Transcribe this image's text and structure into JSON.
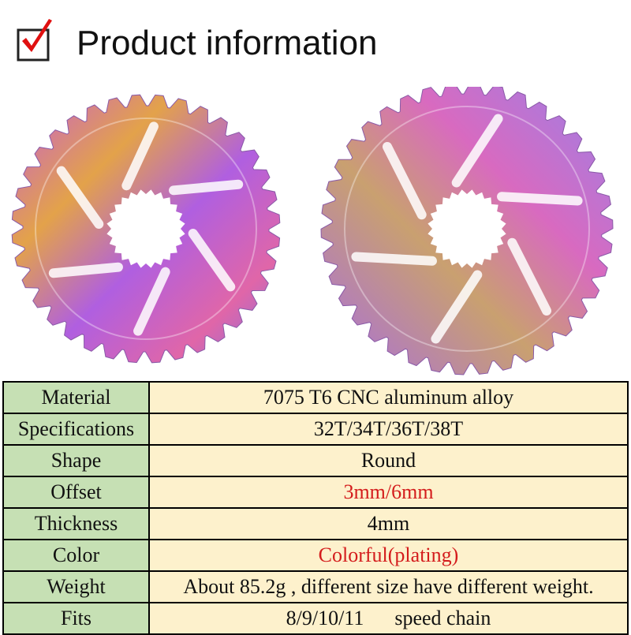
{
  "header": {
    "title": "Product information"
  },
  "table": {
    "rows": [
      [
        "Material",
        "7075 T6 CNC aluminum alloy"
      ],
      [
        "Specifications",
        "32T/34T/36T/38T"
      ],
      [
        "Shape",
        "Round"
      ],
      [
        "Offset",
        "3mm/6mm"
      ],
      [
        "Thickness",
        "4mm"
      ],
      [
        "Color",
        "Colorful(plating)"
      ],
      [
        "Weight",
        "About 85.2g , different size have different weight."
      ],
      [
        "Fits",
        "8/9/10/11      speed chain"
      ]
    ]
  }
}
